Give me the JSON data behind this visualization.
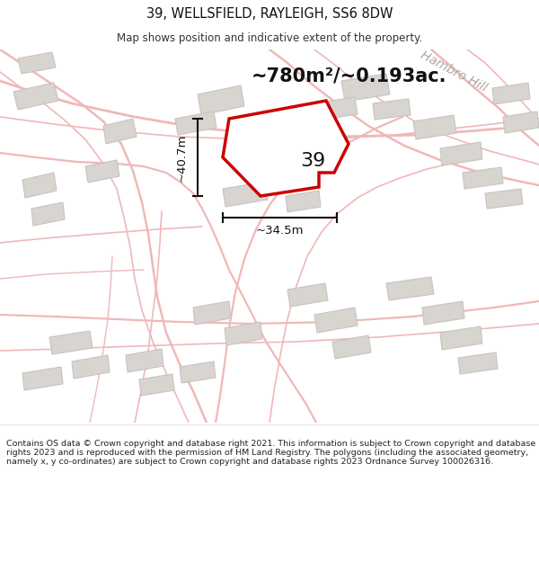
{
  "title": "39, WELLSFIELD, RAYLEIGH, SS6 8DW",
  "subtitle": "Map shows position and indicative extent of the property.",
  "area_text": "~780m²/~0.193ac.",
  "label_39": "39",
  "dim_width": "~34.5m",
  "dim_height": "~40.7m",
  "road_label": "Hambro Hill",
  "footer": "Contains OS data © Crown copyright and database right 2021. This information is subject to Crown copyright and database rights 2023 and is reproduced with the permission of HM Land Registry. The polygons (including the associated geometry, namely x, y co-ordinates) are subject to Crown copyright and database rights 2023 Ordnance Survey 100026316.",
  "map_bg": "#f5f0ec",
  "road_color": "#f0b8b8",
  "building_color": "#d8d4d0",
  "building_edge": "#c8c4c0",
  "highlight_color": "#ffffff",
  "highlight_edge": "#cc0000",
  "dim_color": "#111111",
  "text_color": "#111111",
  "road_label_color": "#b0a8a0",
  "footer_text_color": "#222222"
}
